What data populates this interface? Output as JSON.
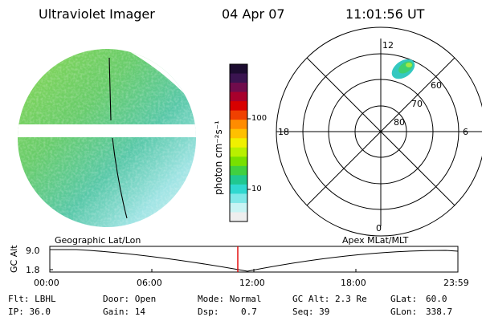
{
  "header": {
    "instrument": "Ultraviolet Imager",
    "date": "04 Apr 07",
    "time": "11:01:56 UT"
  },
  "colorbar": {
    "unit_label": "photon cm⁻²s⁻¹",
    "ticks": [
      "100",
      "10"
    ],
    "colors": [
      "#1c0c30",
      "#3a1450",
      "#700c4c",
      "#a8002c",
      "#d80000",
      "#f04000",
      "#ff8c00",
      "#ffc000",
      "#f0f000",
      "#b8f000",
      "#78e000",
      "#40d040",
      "#20c890",
      "#30d8d0",
      "#80e8e8",
      "#c8f4f4",
      "#eeeeee"
    ]
  },
  "polar": {
    "mlt_labels": {
      "top": "12",
      "left": "18",
      "right": "6",
      "bottom": "0"
    },
    "lat_labels": [
      "60",
      "70",
      "80"
    ]
  },
  "timeline": {
    "left_label": "Geographic Lat/Lon",
    "right_label": "Apex MLat/MLT",
    "axis_title": "GC Alt",
    "y_ticks": [
      "9.0",
      "1.8"
    ],
    "x_ticks": [
      "00:00",
      "06:00",
      "12:00",
      "18:00",
      "23:59"
    ],
    "marker_time": "11:02"
  },
  "info": {
    "filter": "Flt: LBHL",
    "ip": "IP: 36.0",
    "door": "Door: Open",
    "gain": "Gain: 14",
    "mode": "Mode: Normal",
    "dsp_label": "Dsp:",
    "dsp_value": "0.7",
    "gc_alt": "GC Alt: 2.3 Re",
    "seq": "Seq: 39",
    "glat_label": "GLat:",
    "glat_value": "60.0",
    "glon_label": "GLon:",
    "glon_value": "338.7"
  }
}
